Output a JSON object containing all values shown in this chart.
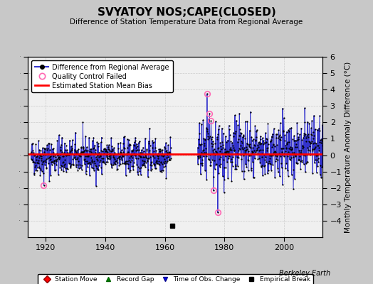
{
  "title": "SVYATOY NOS;CAPE(CLOSED)",
  "subtitle": "Difference of Station Temperature Data from Regional Average",
  "ylabel": "Monthly Temperature Anomaly Difference (°C)",
  "xlabel_ticks": [
    1920,
    1940,
    1960,
    1980,
    2000
  ],
  "ylim": [
    -5,
    6
  ],
  "yticks": [
    -4,
    -3,
    -2,
    -1,
    0,
    1,
    2,
    3,
    4,
    5,
    6
  ],
  "xlim": [
    1914,
    2013
  ],
  "bias_value": 0.07,
  "empirical_break_x": 1962.5,
  "empirical_break_y": -4.3,
  "qc_fail_points": [
    [
      1919.3,
      -1.85
    ],
    [
      1974.2,
      3.75
    ],
    [
      1975.0,
      2.55
    ],
    [
      1975.5,
      2.1
    ],
    [
      1976.3,
      -2.15
    ],
    [
      1977.8,
      -3.5
    ]
  ],
  "bg_color": "#c8c8c8",
  "plot_bg_color": "#ffffff",
  "inner_plot_bg": "#f0f0f0",
  "line_color": "#3333cc",
  "dot_color": "#000000",
  "bias_color": "#ff0000",
  "qc_color": "#ff69b4",
  "grid_color": "#cccccc",
  "legend1_labels": [
    "Difference from Regional Average",
    "Quality Control Failed",
    "Estimated Station Mean Bias"
  ],
  "legend2_labels": [
    "Station Move",
    "Record Gap",
    "Time of Obs. Change",
    "Empirical Break"
  ],
  "credit": "Berkeley Earth",
  "seed": 42,
  "early_start": 1915,
  "early_end": 1962,
  "early_n": 564,
  "early_mean": -0.15,
  "early_std": 0.55,
  "late_start": 1971,
  "late_end": 2013,
  "late_n": 504,
  "late_mean": 0.25,
  "late_std": 0.85
}
